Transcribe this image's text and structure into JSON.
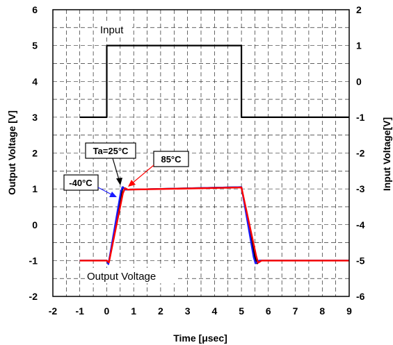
{
  "chart_data": {
    "type": "line",
    "xlabel": "Time [μsec]",
    "ylabel_left": "Output Voltage [V]",
    "ylabel_right": "Input Voltage[V]",
    "xlim": [
      -2,
      9
    ],
    "ylim_left": [
      -2,
      6
    ],
    "ylim_right": [
      -6,
      2
    ],
    "x_ticks": [
      "-2",
      "-1",
      "0",
      "1",
      "2",
      "3",
      "4",
      "5",
      "6",
      "7",
      "8",
      "9"
    ],
    "y_ticks_left": [
      "-2",
      "-1",
      "0",
      "1",
      "2",
      "3",
      "4",
      "5",
      "6"
    ],
    "y_ticks_right": [
      "-6",
      "-5",
      "-4",
      "-3",
      "-2",
      "-1",
      "0",
      "1",
      "2"
    ],
    "grid": true,
    "colors": {
      "input": "#000000",
      "ta25": "#000000",
      "m40": "#1a1aff",
      "h85": "#ff0000"
    },
    "series": [
      {
        "name": "Input",
        "axis": "right",
        "x": [
          -1,
          0,
          0,
          5,
          5,
          9
        ],
        "values": [
          -1,
          -1,
          1,
          1,
          -1,
          -1
        ]
      },
      {
        "name": "Ta=25°C",
        "axis": "left",
        "x": [
          -1,
          0,
          0.06,
          0.55,
          0.6,
          0.7,
          5.0,
          5.5,
          5.58,
          5.7,
          9
        ],
        "values": [
          -1,
          -1,
          -1.1,
          0.9,
          1.05,
          0.98,
          1.05,
          -0.9,
          -1.08,
          -1,
          -1
        ]
      },
      {
        "name": "-40°C",
        "axis": "left",
        "x": [
          -1,
          0,
          0.06,
          0.52,
          0.58,
          0.7,
          5.0,
          5.45,
          5.52,
          5.65,
          9
        ],
        "values": [
          -1,
          -1,
          -1.1,
          0.92,
          1.05,
          0.98,
          1.05,
          -0.9,
          -1.08,
          -1,
          -1
        ]
      },
      {
        "name": "85°C",
        "axis": "left",
        "x": [
          -1,
          0,
          0.08,
          0.6,
          0.68,
          0.78,
          5.0,
          5.55,
          5.62,
          5.75,
          9
        ],
        "values": [
          -1,
          -1,
          -1.05,
          0.88,
          1.02,
          0.98,
          1.04,
          -0.88,
          -1.06,
          -1,
          -1
        ]
      }
    ],
    "annotations": {
      "input_label": "Input",
      "output_label": "Output Voltage",
      "ta25": "Ta=25°C",
      "m40": "-40°C",
      "h85": "85°C"
    }
  }
}
